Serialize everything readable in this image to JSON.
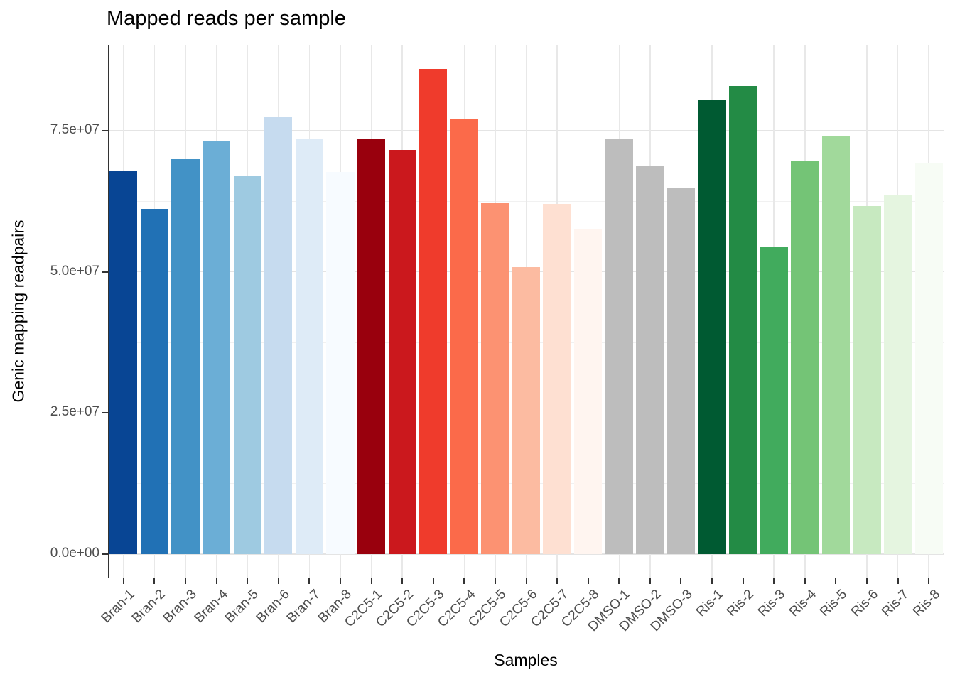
{
  "chart_data": {
    "type": "bar",
    "title": "Mapped reads per sample",
    "xlabel": "Samples",
    "ylabel": "Genic mapping readpairs",
    "ylim": [
      0,
      90300000
    ],
    "grid": true,
    "legend": "none",
    "yticks": [
      {
        "value": 0,
        "label": "0.0e+00"
      },
      {
        "value": 25000000,
        "label": "2.5e+07"
      },
      {
        "value": 50000000,
        "label": "5.0e+07"
      },
      {
        "value": 75000000,
        "label": "7.5e+07"
      }
    ],
    "y_minor_ticks": [
      12500000,
      37500000,
      62500000,
      87500000
    ],
    "bars": [
      {
        "label": "Bran-1",
        "value": 67900000,
        "color": "#084594"
      },
      {
        "label": "Bran-2",
        "value": 61200000,
        "color": "#2171B5"
      },
      {
        "label": "Bran-3",
        "value": 70000000,
        "color": "#4292C6"
      },
      {
        "label": "Bran-4",
        "value": 73300000,
        "color": "#6BAED6"
      },
      {
        "label": "Bran-5",
        "value": 66900000,
        "color": "#9ECAE1"
      },
      {
        "label": "Bran-6",
        "value": 77500000,
        "color": "#C6DBEF"
      },
      {
        "label": "Bran-7",
        "value": 73500000,
        "color": "#DEEBF7"
      },
      {
        "label": "Bran-8",
        "value": 67700000,
        "color": "#F7FBFF"
      },
      {
        "label": "C2C5-1",
        "value": 73600000,
        "color": "#99000D"
      },
      {
        "label": "C2C5-2",
        "value": 71600000,
        "color": "#CB181D"
      },
      {
        "label": "C2C5-3",
        "value": 85900000,
        "color": "#EF3B2C"
      },
      {
        "label": "C2C5-4",
        "value": 77000000,
        "color": "#FB6A4A"
      },
      {
        "label": "C2C5-5",
        "value": 62200000,
        "color": "#FC9272"
      },
      {
        "label": "C2C5-6",
        "value": 50800000,
        "color": "#FCBBA1"
      },
      {
        "label": "C2C5-7",
        "value": 62000000,
        "color": "#FEE0D2"
      },
      {
        "label": "C2C5-8",
        "value": 57500000,
        "color": "#FFF5F0"
      },
      {
        "label": "DMSO-1",
        "value": 73600000,
        "color": "#BDBDBD"
      },
      {
        "label": "DMSO-2",
        "value": 68800000,
        "color": "#BDBDBD"
      },
      {
        "label": "DMSO-3",
        "value": 64900000,
        "color": "#BDBDBD"
      },
      {
        "label": "Ris-1",
        "value": 80400000,
        "color": "#005A32"
      },
      {
        "label": "Ris-2",
        "value": 82900000,
        "color": "#238B45"
      },
      {
        "label": "Ris-3",
        "value": 54500000,
        "color": "#41AB5D"
      },
      {
        "label": "Ris-4",
        "value": 69600000,
        "color": "#74C476"
      },
      {
        "label": "Ris-5",
        "value": 74000000,
        "color": "#A1D99B"
      },
      {
        "label": "Ris-6",
        "value": 61700000,
        "color": "#C7E9C0"
      },
      {
        "label": "Ris-7",
        "value": 63500000,
        "color": "#E5F5E0"
      },
      {
        "label": "Ris-8",
        "value": 69200000,
        "color": "#F7FCF5"
      }
    ]
  }
}
